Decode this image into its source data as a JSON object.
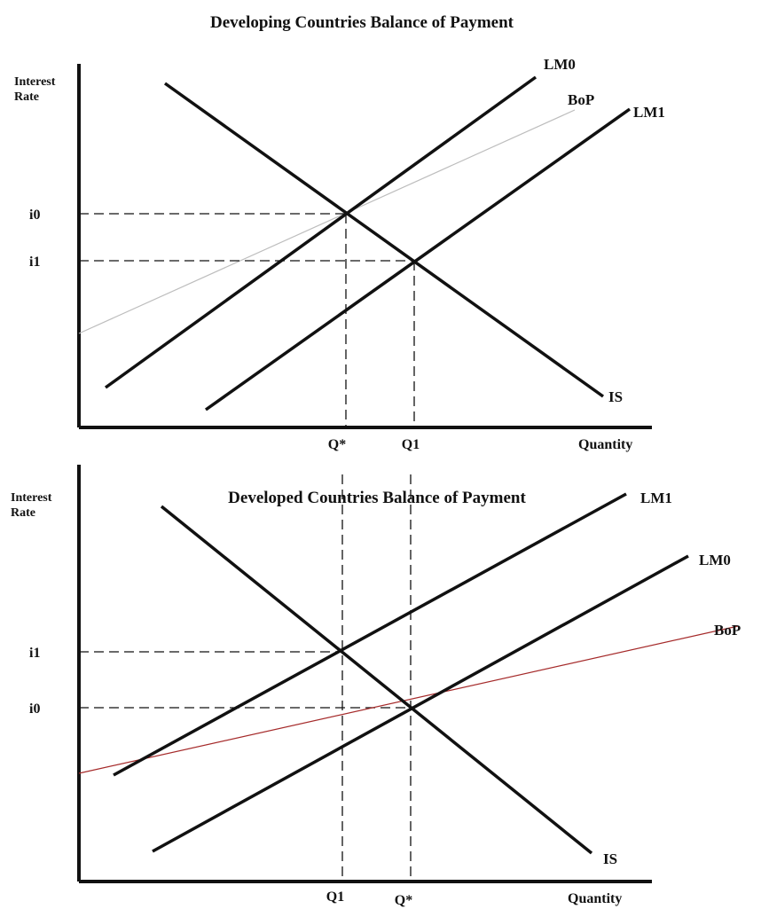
{
  "colors": {
    "ink": "#111111",
    "bop_top": "#bdbdbd",
    "bop_bottom": "#a52a2a"
  },
  "panels": [
    {
      "title": "Developing Countries Balance of Payment",
      "y_axis_label_line1": "Interest",
      "y_axis_label_line2": "Rate",
      "x_axis_label": "Quantity",
      "curves": {
        "lm0": "LM0",
        "lm1": "LM1",
        "bop": "BoP",
        "is": "IS"
      },
      "y_ticks": {
        "i0": "i0",
        "i1": "i1"
      },
      "x_ticks": {
        "q_star": "Q*",
        "q1": "Q1"
      }
    },
    {
      "title": "Developed Countries Balance of Payment",
      "y_axis_label_line1": "Interest",
      "y_axis_label_line2": "Rate",
      "x_axis_label": "Quantity",
      "curves": {
        "lm1": "LM1",
        "lm0": "LM0",
        "bop": "BoP",
        "is": "IS"
      },
      "y_ticks": {
        "i1": "i1",
        "i0": "i0"
      },
      "x_ticks": {
        "q1": "Q1",
        "q_star": "Q*"
      }
    }
  ]
}
